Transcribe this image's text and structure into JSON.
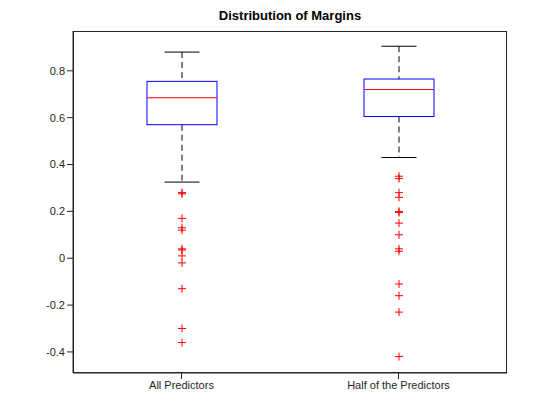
{
  "chart_data": {
    "type": "box",
    "title": "Distribution of Margins",
    "categories": [
      "All Predictors",
      "Half of the Predictors"
    ],
    "whisker_low": [
      0.325,
      0.43
    ],
    "q1": [
      0.57,
      0.605
    ],
    "median": [
      0.685,
      0.72
    ],
    "q3": [
      0.755,
      0.765
    ],
    "whisker_high": [
      0.88,
      0.905
    ],
    "outliers": [
      [
        0.28,
        0.275,
        0.17,
        0.13,
        0.12,
        0.04,
        0.035,
        0.01,
        -0.02,
        -0.13,
        -0.3,
        -0.36
      ],
      [
        0.35,
        0.34,
        0.28,
        0.26,
        0.2,
        0.195,
        0.15,
        0.1,
        0.04,
        0.03,
        -0.11,
        -0.16,
        -0.23,
        -0.42
      ]
    ],
    "color": "#0000ff",
    "ylim": [
      -0.49,
      0.97
    ],
    "yticks": [
      -0.4,
      -0.2,
      0,
      0.2,
      0.4,
      0.6,
      0.8
    ],
    "grid": false
  }
}
